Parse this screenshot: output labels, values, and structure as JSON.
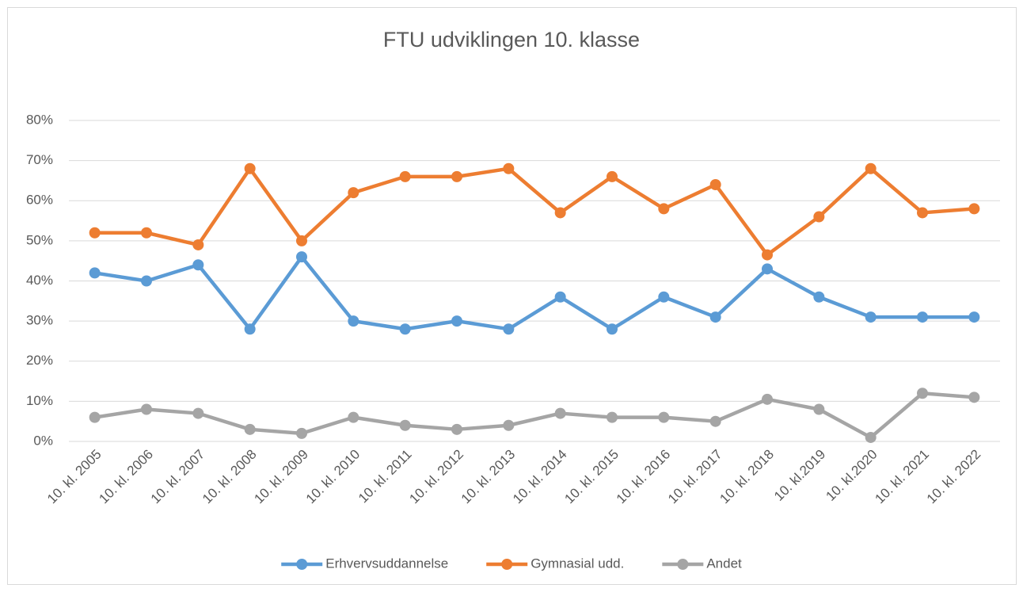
{
  "chart_data": {
    "type": "line",
    "title": "FTU udviklingen 10. klasse",
    "categories": [
      "10. kl. 2005",
      "10. kl. 2006",
      "10. kl. 2007",
      "10. kl. 2008",
      "10. kl. 2009",
      "10. kl. 2010",
      "10. kl. 2011",
      "10. kl. 2012",
      "10. kl. 2013",
      "10. kl. 2014",
      "10. kl. 2015",
      "10. kl. 2016",
      "10. kl. 2017",
      "10. kl. 2018",
      "10. kl.2019",
      "10. kl.2020",
      "10. kl. 2021",
      "10. kl. 2022"
    ],
    "series": [
      {
        "name": "Erhvervsuddannelse",
        "color": "#5b9bd5",
        "values": [
          42,
          40,
          44,
          28,
          46,
          30,
          28,
          30,
          28,
          36,
          28,
          36,
          31,
          43,
          36,
          31,
          31,
          31
        ]
      },
      {
        "name": "Gymnasial udd.",
        "color": "#ed7d31",
        "values": [
          52,
          52,
          49,
          68,
          50,
          62,
          66,
          66,
          68,
          57,
          66,
          58,
          64,
          46.5,
          56,
          68,
          57,
          58
        ]
      },
      {
        "name": "Andet",
        "color": "#a5a5a5",
        "values": [
          6,
          8,
          7,
          3,
          2,
          6,
          4,
          3,
          4,
          7,
          6,
          6,
          5,
          10.5,
          8,
          1,
          12,
          11
        ]
      }
    ],
    "ylim": [
      0,
      80
    ],
    "yticks": [
      {
        "value": 0,
        "label": "0%"
      },
      {
        "value": 10,
        "label": "10%"
      },
      {
        "value": 20,
        "label": "20%"
      },
      {
        "value": 30,
        "label": "30%"
      },
      {
        "value": 40,
        "label": "40%"
      },
      {
        "value": 50,
        "label": "50%"
      },
      {
        "value": 60,
        "label": "60%"
      },
      {
        "value": 70,
        "label": "70%"
      },
      {
        "value": 80,
        "label": "80%"
      }
    ],
    "grid": true,
    "legend": "bottom"
  }
}
